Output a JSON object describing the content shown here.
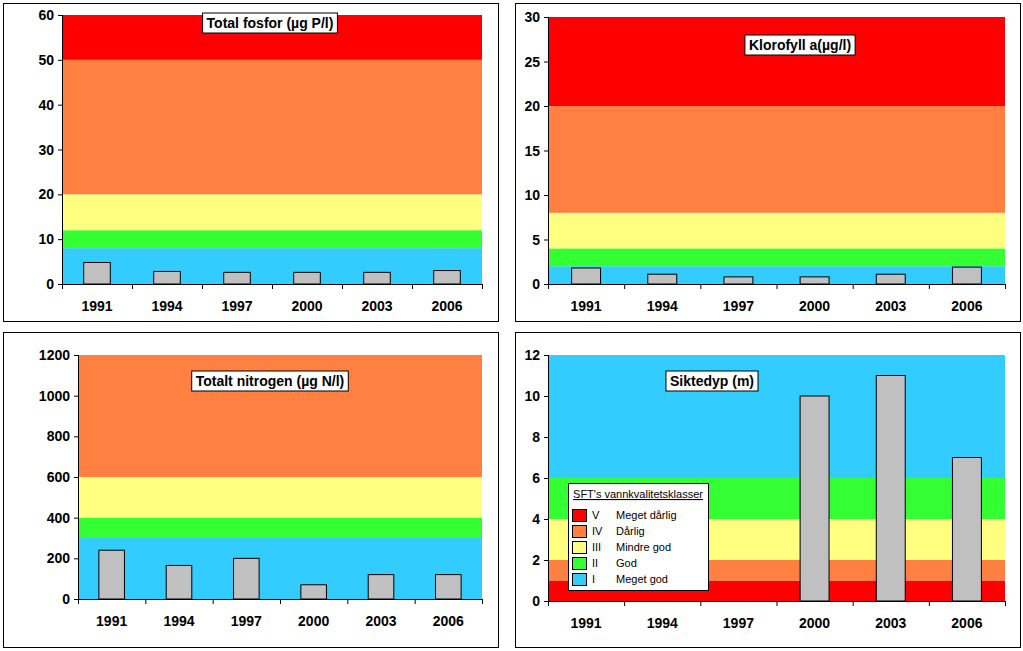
{
  "chart_data": [
    {
      "type": "bar",
      "title": "Total fosfor (µg P/l)",
      "categories": [
        "1991",
        "1994",
        "1997",
        "2000",
        "2003",
        "2006"
      ],
      "values": [
        4.8,
        2.8,
        2.6,
        2.6,
        2.6,
        3.0
      ],
      "color": "#c0c0c0",
      "ylim": [
        0,
        60
      ],
      "yticks": [
        0,
        10,
        20,
        30,
        40,
        50,
        60
      ],
      "grid": false,
      "bands": [
        {
          "class": "I",
          "from": 0,
          "to": 8
        },
        {
          "class": "II",
          "from": 8,
          "to": 12
        },
        {
          "class": "III",
          "from": 12,
          "to": 20
        },
        {
          "class": "IV",
          "from": 20,
          "to": 50
        },
        {
          "class": "V",
          "from": 50,
          "to": 60
        }
      ]
    },
    {
      "type": "bar",
      "title": "Klorofyll a(µg/l)",
      "categories": [
        "1991",
        "1994",
        "1997",
        "2000",
        "2003",
        "2006"
      ],
      "values": [
        1.8,
        1.1,
        0.8,
        0.8,
        1.1,
        1.9
      ],
      "color": "#c0c0c0",
      "ylim": [
        0,
        30
      ],
      "yticks": [
        0,
        5,
        10,
        15,
        20,
        25,
        30
      ],
      "grid": false,
      "bands": [
        {
          "class": "I",
          "from": 0,
          "to": 2
        },
        {
          "class": "II",
          "from": 2,
          "to": 4
        },
        {
          "class": "III",
          "from": 4,
          "to": 8
        },
        {
          "class": "IV",
          "from": 8,
          "to": 20
        },
        {
          "class": "V",
          "from": 20,
          "to": 30
        }
      ]
    },
    {
      "type": "bar",
      "title": "Totalt nitrogen (µg N/l)",
      "categories": [
        "1991",
        "1994",
        "1997",
        "2000",
        "2003",
        "2006"
      ],
      "values": [
        240,
        165,
        200,
        70,
        120,
        120
      ],
      "color": "#c0c0c0",
      "ylim": [
        0,
        1200
      ],
      "yticks": [
        0,
        200,
        400,
        600,
        800,
        1000,
        1200
      ],
      "grid": false,
      "bands": [
        {
          "class": "I",
          "from": 0,
          "to": 300
        },
        {
          "class": "II",
          "from": 300,
          "to": 400
        },
        {
          "class": "III",
          "from": 400,
          "to": 600
        },
        {
          "class": "IV",
          "from": 600,
          "to": 1200
        }
      ]
    },
    {
      "type": "bar",
      "title": "Siktedyp (m)",
      "categories": [
        "1991",
        "1994",
        "1997",
        "2000",
        "2003",
        "2006"
      ],
      "values": [
        null,
        null,
        null,
        10,
        11,
        7
      ],
      "color": "#c0c0c0",
      "ylim": [
        0,
        12
      ],
      "yticks": [
        0,
        2,
        4,
        6,
        8,
        10,
        12
      ],
      "grid": false,
      "legend": "lower left",
      "bands": [
        {
          "class": "V",
          "from": 0,
          "to": 1
        },
        {
          "class": "IV",
          "from": 1,
          "to": 2
        },
        {
          "class": "III",
          "from": 2,
          "to": 4
        },
        {
          "class": "II",
          "from": 4,
          "to": 6
        },
        {
          "class": "I",
          "from": 6,
          "to": 12
        }
      ]
    }
  ],
  "class_legend": {
    "title": "SFT's vannkvalitetsklasser",
    "entries": [
      {
        "numeral": "V",
        "name": "Meget dårlig",
        "color": "#ff0000"
      },
      {
        "numeral": "IV",
        "name": "Dårlig",
        "color": "#ff8040"
      },
      {
        "numeral": "III",
        "name": "Mindre god",
        "color": "#ffff80"
      },
      {
        "numeral": "II",
        "name": "God",
        "color": "#33ff33"
      },
      {
        "numeral": "I",
        "name": "Meget god",
        "color": "#33ccff"
      }
    ]
  }
}
